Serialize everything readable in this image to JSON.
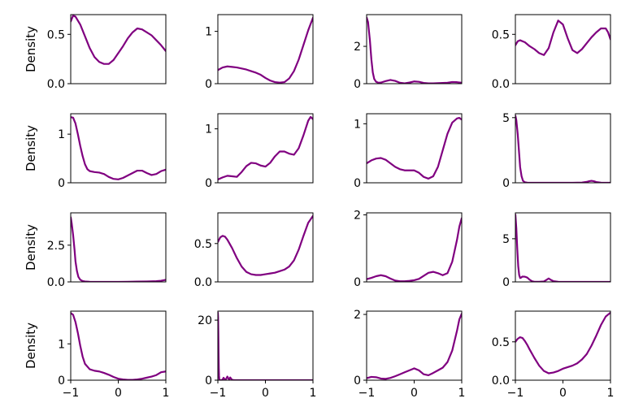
{
  "figure": {
    "line_color": "#800080",
    "background": "#ffffff",
    "axis_color": "#000000"
  },
  "chart_data": {
    "type": "line",
    "layout": "4x4 grid of small-multiple density (KDE) plots",
    "xlim": [
      -1,
      1
    ],
    "x_tick_labels": [
      "−1",
      "0",
      "1"
    ],
    "x_ticks_shown_on": "bottom row only",
    "ylabel": "Density",
    "ylabel_shown_on": "first column only",
    "grid": false,
    "legend": "none",
    "panels": [
      {
        "ylim": [
          0,
          0.7
        ],
        "y_ticks": [
          0,
          0.5
        ],
        "y_tick_labels": [
          "0.0",
          "0.5"
        ],
        "x": [
          -1,
          -0.95,
          -0.9,
          -0.8,
          -0.7,
          -0.6,
          -0.5,
          -0.4,
          -0.3,
          -0.2,
          -0.1,
          0,
          0.1,
          0.2,
          0.3,
          0.4,
          0.5,
          0.6,
          0.7,
          0.8,
          0.9,
          1
        ],
        "y": [
          0.63,
          0.69,
          0.68,
          0.6,
          0.48,
          0.36,
          0.27,
          0.22,
          0.2,
          0.2,
          0.24,
          0.31,
          0.38,
          0.46,
          0.52,
          0.56,
          0.55,
          0.52,
          0.49,
          0.44,
          0.39,
          0.33
        ]
      },
      {
        "ylim": [
          0,
          1.32
        ],
        "y_ticks": [
          0,
          1
        ],
        "y_tick_labels": [
          "0",
          "1"
        ],
        "x": [
          -1,
          -0.9,
          -0.8,
          -0.7,
          -0.6,
          -0.5,
          -0.4,
          -0.3,
          -0.2,
          -0.1,
          0,
          0.1,
          0.2,
          0.3,
          0.4,
          0.5,
          0.6,
          0.7,
          0.8,
          0.9,
          1
        ],
        "y": [
          0.26,
          0.31,
          0.33,
          0.32,
          0.31,
          0.29,
          0.27,
          0.24,
          0.21,
          0.17,
          0.11,
          0.06,
          0.03,
          0.02,
          0.03,
          0.1,
          0.24,
          0.46,
          0.74,
          1.02,
          1.26
        ]
      },
      {
        "ylim": [
          0,
          3.7
        ],
        "y_ticks": [
          0,
          2
        ],
        "y_tick_labels": [
          "0",
          "2"
        ],
        "x": [
          -1,
          -0.97,
          -0.93,
          -0.9,
          -0.87,
          -0.84,
          -0.8,
          -0.75,
          -0.7,
          -0.6,
          -0.5,
          -0.4,
          -0.3,
          -0.2,
          -0.1,
          0,
          0.1,
          0.2,
          0.3,
          0.4,
          0.5,
          0.6,
          0.7,
          0.8,
          0.9,
          1
        ],
        "y": [
          3.55,
          3.3,
          2.3,
          1.3,
          0.6,
          0.25,
          0.1,
          0.05,
          0.06,
          0.14,
          0.2,
          0.15,
          0.05,
          0.02,
          0.06,
          0.12,
          0.1,
          0.04,
          0.02,
          0.02,
          0.03,
          0.04,
          0.05,
          0.09,
          0.08,
          0.05
        ]
      },
      {
        "ylim": [
          0,
          0.7
        ],
        "y_ticks": [
          0,
          0.5
        ],
        "y_tick_labels": [
          "0.0",
          "0.5"
        ],
        "x": [
          -1,
          -0.95,
          -0.9,
          -0.8,
          -0.7,
          -0.6,
          -0.5,
          -0.4,
          -0.3,
          -0.2,
          -0.1,
          0,
          0.1,
          0.2,
          0.3,
          0.4,
          0.5,
          0.6,
          0.7,
          0.8,
          0.9,
          0.95,
          1
        ],
        "y": [
          0.39,
          0.43,
          0.44,
          0.42,
          0.38,
          0.35,
          0.31,
          0.29,
          0.36,
          0.52,
          0.64,
          0.6,
          0.46,
          0.34,
          0.31,
          0.35,
          0.41,
          0.47,
          0.52,
          0.56,
          0.56,
          0.52,
          0.45
        ]
      },
      {
        "ylim": [
          0,
          1.42
        ],
        "y_ticks": [
          0,
          1
        ],
        "y_tick_labels": [
          "0",
          "1"
        ],
        "x": [
          -1,
          -0.95,
          -0.9,
          -0.85,
          -0.8,
          -0.75,
          -0.7,
          -0.65,
          -0.6,
          -0.5,
          -0.4,
          -0.3,
          -0.2,
          -0.1,
          0,
          0.1,
          0.2,
          0.3,
          0.4,
          0.5,
          0.6,
          0.7,
          0.8,
          0.9,
          1
        ],
        "y": [
          1.35,
          1.34,
          1.22,
          1.0,
          0.76,
          0.55,
          0.38,
          0.28,
          0.24,
          0.22,
          0.21,
          0.18,
          0.12,
          0.08,
          0.07,
          0.1,
          0.15,
          0.2,
          0.25,
          0.25,
          0.2,
          0.16,
          0.18,
          0.24,
          0.27
        ]
      },
      {
        "ylim": [
          0,
          1.28
        ],
        "y_ticks": [
          0,
          1
        ],
        "y_tick_labels": [
          "0",
          "1"
        ],
        "x": [
          -1,
          -0.9,
          -0.8,
          -0.7,
          -0.6,
          -0.5,
          -0.4,
          -0.3,
          -0.2,
          -0.1,
          0,
          0.1,
          0.2,
          0.3,
          0.4,
          0.5,
          0.6,
          0.7,
          0.8,
          0.9,
          0.95,
          1
        ],
        "y": [
          0.06,
          0.1,
          0.13,
          0.12,
          0.11,
          0.2,
          0.31,
          0.37,
          0.36,
          0.32,
          0.3,
          0.37,
          0.49,
          0.58,
          0.58,
          0.54,
          0.52,
          0.64,
          0.88,
          1.15,
          1.22,
          1.18
        ]
      },
      {
        "ylim": [
          0,
          1.17
        ],
        "y_ticks": [
          0,
          1
        ],
        "y_tick_labels": [
          "0",
          "1"
        ],
        "x": [
          -1,
          -0.9,
          -0.8,
          -0.7,
          -0.6,
          -0.5,
          -0.4,
          -0.3,
          -0.2,
          -0.1,
          0,
          0.1,
          0.2,
          0.3,
          0.4,
          0.5,
          0.6,
          0.7,
          0.8,
          0.9,
          0.95,
          1
        ],
        "y": [
          0.33,
          0.38,
          0.41,
          0.42,
          0.39,
          0.33,
          0.27,
          0.23,
          0.21,
          0.21,
          0.21,
          0.17,
          0.1,
          0.07,
          0.11,
          0.27,
          0.55,
          0.83,
          1.02,
          1.09,
          1.1,
          1.07
        ]
      },
      {
        "ylim": [
          0,
          5.3
        ],
        "y_ticks": [
          0,
          5
        ],
        "y_tick_labels": [
          "0",
          "5"
        ],
        "x": [
          -1,
          -0.98,
          -0.95,
          -0.92,
          -0.9,
          -0.87,
          -0.84,
          -0.8,
          -0.75,
          -0.7,
          -0.5,
          -0.2,
          0,
          0.2,
          0.4,
          0.5,
          0.55,
          0.6,
          0.65,
          0.7,
          0.8,
          1
        ],
        "y": [
          5.15,
          4.8,
          3.7,
          2.2,
          1.2,
          0.5,
          0.15,
          0.04,
          0.01,
          0,
          0,
          0,
          0,
          0,
          0.02,
          0.07,
          0.12,
          0.15,
          0.12,
          0.06,
          0.01,
          0
        ]
      },
      {
        "ylim": [
          0,
          4.7
        ],
        "y_ticks": [
          0,
          2.5
        ],
        "y_tick_labels": [
          "0.0",
          "2.5"
        ],
        "x": [
          -1,
          -0.98,
          -0.95,
          -0.92,
          -0.9,
          -0.87,
          -0.84,
          -0.8,
          -0.75,
          -0.7,
          -0.6,
          -0.4,
          -0.2,
          0,
          0.2,
          0.4,
          0.6,
          0.8,
          0.9,
          1
        ],
        "y": [
          4.4,
          4.0,
          3.2,
          2.2,
          1.4,
          0.75,
          0.35,
          0.15,
          0.06,
          0.03,
          0.01,
          0,
          0,
          0,
          0.01,
          0.02,
          0.03,
          0.05,
          0.08,
          0.14
        ]
      },
      {
        "ylim": [
          0,
          0.9
        ],
        "y_ticks": [
          0,
          0.5
        ],
        "y_tick_labels": [
          "0.0",
          "0.5"
        ],
        "x": [
          -1,
          -0.95,
          -0.9,
          -0.85,
          -0.8,
          -0.7,
          -0.6,
          -0.5,
          -0.4,
          -0.3,
          -0.2,
          -0.1,
          0,
          0.1,
          0.2,
          0.3,
          0.4,
          0.5,
          0.6,
          0.7,
          0.8,
          0.9,
          1
        ],
        "y": [
          0.52,
          0.58,
          0.6,
          0.59,
          0.55,
          0.44,
          0.31,
          0.2,
          0.13,
          0.1,
          0.09,
          0.09,
          0.1,
          0.11,
          0.12,
          0.14,
          0.16,
          0.2,
          0.28,
          0.42,
          0.6,
          0.77,
          0.86
        ]
      },
      {
        "ylim": [
          0,
          2.06
        ],
        "y_ticks": [
          0,
          2
        ],
        "y_tick_labels": [
          "0",
          "2"
        ],
        "x": [
          -1,
          -0.9,
          -0.8,
          -0.7,
          -0.6,
          -0.5,
          -0.4,
          -0.3,
          -0.2,
          -0.1,
          0,
          0.1,
          0.2,
          0.3,
          0.4,
          0.5,
          0.6,
          0.7,
          0.8,
          0.9,
          0.95,
          1
        ],
        "y": [
          0.08,
          0.12,
          0.17,
          0.2,
          0.17,
          0.1,
          0.04,
          0.02,
          0.02,
          0.03,
          0.05,
          0.09,
          0.18,
          0.27,
          0.3,
          0.26,
          0.2,
          0.26,
          0.6,
          1.25,
          1.65,
          1.9
        ]
      },
      {
        "ylim": [
          0,
          8
        ],
        "y_ticks": [
          0,
          5
        ],
        "y_tick_labels": [
          "0",
          "5"
        ],
        "x": [
          -1,
          -0.98,
          -0.96,
          -0.94,
          -0.92,
          -0.9,
          -0.88,
          -0.85,
          -0.8,
          -0.75,
          -0.7,
          -0.65,
          -0.6,
          -0.5,
          -0.4,
          -0.35,
          -0.3,
          -0.25,
          -0.2,
          -0.1,
          0,
          0.5,
          1
        ],
        "y": [
          7.8,
          6.2,
          3.8,
          1.8,
          0.8,
          0.45,
          0.5,
          0.62,
          0.6,
          0.5,
          0.25,
          0.08,
          0.02,
          0.01,
          0.05,
          0.22,
          0.4,
          0.22,
          0.08,
          0.01,
          0,
          0,
          0
        ]
      },
      {
        "ylim": [
          0,
          1.9
        ],
        "y_ticks": [
          0,
          1
        ],
        "y_tick_labels": [
          "0",
          "1"
        ],
        "x": [
          -1,
          -0.95,
          -0.9,
          -0.85,
          -0.8,
          -0.75,
          -0.7,
          -0.6,
          -0.5,
          -0.4,
          -0.3,
          -0.2,
          -0.1,
          0,
          0.1,
          0.2,
          0.3,
          0.4,
          0.5,
          0.6,
          0.7,
          0.8,
          0.9,
          1
        ],
        "y": [
          1.85,
          1.8,
          1.6,
          1.3,
          0.95,
          0.65,
          0.45,
          0.3,
          0.26,
          0.24,
          0.2,
          0.15,
          0.09,
          0.04,
          0.02,
          0.01,
          0.01,
          0.02,
          0.04,
          0.07,
          0.1,
          0.14,
          0.22,
          0.24
        ]
      },
      {
        "ylim": [
          0,
          23
        ],
        "y_ticks": [
          0,
          20
        ],
        "y_tick_labels": [
          "0",
          "20"
        ],
        "x": [
          -1,
          -0.995,
          -0.99,
          -0.985,
          -0.98,
          -0.975,
          -0.97,
          -0.96,
          -0.95,
          -0.93,
          -0.9,
          -0.88,
          -0.86,
          -0.84,
          -0.82,
          -0.8,
          -0.78,
          -0.76,
          -0.74,
          -0.72,
          -0.7,
          -0.65,
          -0.6,
          0,
          1
        ],
        "y": [
          22.5,
          21,
          16,
          9,
          4,
          1.5,
          0.4,
          0,
          0,
          0,
          0.2,
          0.8,
          0.4,
          0.1,
          0.6,
          1.2,
          0.6,
          0.2,
          0.9,
          0.5,
          0.1,
          0,
          0,
          0,
          0
        ]
      },
      {
        "ylim": [
          0,
          2.1
        ],
        "y_ticks": [
          0,
          2
        ],
        "y_tick_labels": [
          "0",
          "2"
        ],
        "x": [
          -1,
          -0.9,
          -0.8,
          -0.7,
          -0.6,
          -0.5,
          -0.4,
          -0.3,
          -0.2,
          -0.1,
          0,
          0.1,
          0.2,
          0.3,
          0.4,
          0.5,
          0.6,
          0.7,
          0.8,
          0.9,
          0.95,
          1
        ],
        "y": [
          0.06,
          0.1,
          0.09,
          0.05,
          0.04,
          0.07,
          0.12,
          0.18,
          0.24,
          0.3,
          0.36,
          0.3,
          0.18,
          0.15,
          0.22,
          0.3,
          0.38,
          0.55,
          0.9,
          1.5,
          1.85,
          2.02
        ]
      },
      {
        "ylim": [
          0,
          0.9
        ],
        "y_ticks": [
          0,
          0.5
        ],
        "y_tick_labels": [
          "0.0",
          "0.5"
        ],
        "x": [
          -1,
          -0.95,
          -0.9,
          -0.85,
          -0.8,
          -0.75,
          -0.7,
          -0.6,
          -0.5,
          -0.4,
          -0.3,
          -0.2,
          -0.1,
          0,
          0.1,
          0.2,
          0.3,
          0.4,
          0.5,
          0.6,
          0.7,
          0.8,
          0.9,
          1
        ],
        "y": [
          0.5,
          0.54,
          0.56,
          0.55,
          0.51,
          0.46,
          0.4,
          0.29,
          0.19,
          0.12,
          0.09,
          0.1,
          0.12,
          0.15,
          0.17,
          0.19,
          0.22,
          0.27,
          0.34,
          0.45,
          0.58,
          0.72,
          0.83,
          0.88
        ]
      }
    ]
  }
}
